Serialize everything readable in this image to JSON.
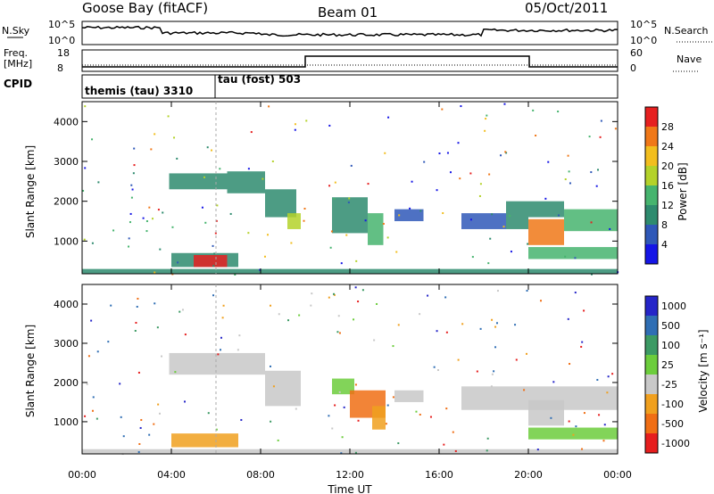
{
  "header": {
    "station": "Goose Bay (fitACF)",
    "beam": "Beam 01",
    "date": "05/Oct/2011"
  },
  "summary_labels": {
    "nsky": "N.Sky",
    "nsearch": "N.Search",
    "freq_line1": "Freq.",
    "freq_line2": "[MHz]",
    "nave": "Nave",
    "cpid": "CPID",
    "nsky_ticks": [
      "10^5",
      "10^0"
    ],
    "nsearch_ticks": [
      "10^5",
      "10^0"
    ],
    "freq_ticks": [
      "18",
      "8"
    ],
    "nave_ticks": [
      "60",
      "0"
    ]
  },
  "cpid_segments": [
    {
      "label": "themis (tau) 3310",
      "start_hour": 0
    },
    {
      "label": "tau (fost) 503",
      "start_hour": 6
    }
  ],
  "axes": {
    "xlabel": "Time UT",
    "xticks": [
      "00:00",
      "04:00",
      "08:00",
      "12:00",
      "16:00",
      "20:00",
      "00:00"
    ],
    "ylabel": "Slant Range [km]",
    "yticks": [
      "1000",
      "2000",
      "3000",
      "4000"
    ],
    "xlim_hours": [
      0,
      24
    ],
    "ylim_km": [
      180,
      4500
    ]
  },
  "power_colorbar": {
    "label": "Power [dB]",
    "ticks": [
      "4",
      "8",
      "12",
      "16",
      "20",
      "24",
      "28"
    ],
    "colors": [
      "#1515e6",
      "#2f58b8",
      "#2e8b6e",
      "#46b46e",
      "#b4d22a",
      "#f2be1e",
      "#f07818",
      "#e62020"
    ]
  },
  "velocity_colorbar": {
    "label": "Velocity [m s⁻¹]",
    "ticks": [
      "1000",
      "500",
      "100",
      "25",
      "-25",
      "-100",
      "-500",
      "-1000"
    ],
    "colors": [
      "#2525c8",
      "#2f6eb4",
      "#3c9a64",
      "#6ccd3c",
      "#c8c8c8",
      "#f0a01e",
      "#f06e14",
      "#e61e1e"
    ]
  },
  "chart_data": [
    {
      "type": "heatmap",
      "title": "Power",
      "xlabel": "Time UT",
      "ylabel": "Slant Range [km]",
      "xlim": [
        0,
        24
      ],
      "ylim": [
        180,
        4500
      ],
      "regions": [
        {
          "t0": 3.9,
          "t1": 6.5,
          "r0": 2300,
          "r1": 2700,
          "level": 2
        },
        {
          "t0": 6.5,
          "t1": 8.2,
          "r0": 2200,
          "r1": 2750,
          "level": 2
        },
        {
          "t0": 8.2,
          "t1": 9.6,
          "r0": 1600,
          "r1": 2300,
          "level": 2
        },
        {
          "t0": 9.2,
          "t1": 9.8,
          "r0": 1300,
          "r1": 1700,
          "level": 4
        },
        {
          "t0": 11.2,
          "t1": 12.8,
          "r0": 1200,
          "r1": 2100,
          "level": 2
        },
        {
          "t0": 12.8,
          "t1": 13.5,
          "r0": 900,
          "r1": 1700,
          "level": 3
        },
        {
          "t0": 14.0,
          "t1": 15.3,
          "r0": 1500,
          "r1": 1800,
          "level": 1
        },
        {
          "t0": 17.0,
          "t1": 19.0,
          "r0": 1300,
          "r1": 1700,
          "level": 1
        },
        {
          "t0": 19.0,
          "t1": 20.0,
          "r0": 1300,
          "r1": 2000,
          "level": 2
        },
        {
          "t0": 20.0,
          "t1": 21.6,
          "r0": 900,
          "r1": 1550,
          "level": 6
        },
        {
          "t0": 20.0,
          "t1": 21.6,
          "r0": 1600,
          "r1": 2000,
          "level": 2
        },
        {
          "t0": 21.6,
          "t1": 24.0,
          "r0": 1250,
          "r1": 1800,
          "level": 3
        },
        {
          "t0": 20.0,
          "t1": 24.0,
          "r0": 550,
          "r1": 850,
          "level": 3
        },
        {
          "t0": 4.0,
          "t1": 7.0,
          "r0": 350,
          "r1": 700,
          "level": 2
        },
        {
          "t0": 5.0,
          "t1": 6.5,
          "r0": 350,
          "r1": 650,
          "level": 7
        },
        {
          "t0": 0.0,
          "t1": 24.0,
          "r0": 180,
          "r1": 300,
          "level": 2
        }
      ]
    },
    {
      "type": "heatmap",
      "title": "Velocity",
      "xlabel": "Time UT",
      "ylabel": "Slant Range [km]",
      "xlim": [
        0,
        24
      ],
      "ylim": [
        180,
        4500
      ],
      "regions": [
        {
          "t0": 3.9,
          "t1": 8.2,
          "r0": 2200,
          "r1": 2750,
          "level": 4
        },
        {
          "t0": 8.2,
          "t1": 9.8,
          "r0": 1400,
          "r1": 2300,
          "level": 4
        },
        {
          "t0": 11.2,
          "t1": 12.2,
          "r0": 1700,
          "r1": 2100,
          "level": 3
        },
        {
          "t0": 12.0,
          "t1": 13.6,
          "r0": 1100,
          "r1": 1800,
          "level": 6
        },
        {
          "t0": 13.0,
          "t1": 13.6,
          "r0": 800,
          "r1": 1400,
          "level": 5
        },
        {
          "t0": 14.0,
          "t1": 15.3,
          "r0": 1500,
          "r1": 1800,
          "level": 4
        },
        {
          "t0": 17.0,
          "t1": 24.0,
          "r0": 1300,
          "r1": 1900,
          "level": 4
        },
        {
          "t0": 20.0,
          "t1": 21.6,
          "r0": 900,
          "r1": 1550,
          "level": 4
        },
        {
          "t0": 20.0,
          "t1": 24.0,
          "r0": 550,
          "r1": 850,
          "level": 3
        },
        {
          "t0": 4.0,
          "t1": 7.0,
          "r0": 350,
          "r1": 700,
          "level": 5
        },
        {
          "t0": 0.0,
          "t1": 24.0,
          "r0": 180,
          "r1": 300,
          "level": 4
        }
      ]
    }
  ]
}
